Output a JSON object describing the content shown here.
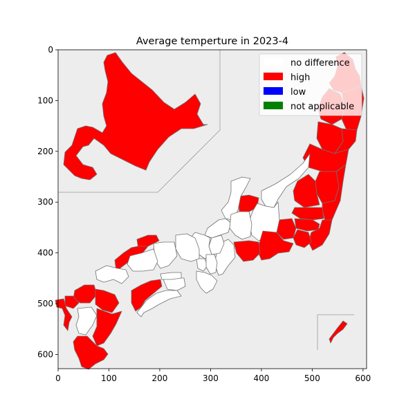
{
  "chart_data": {
    "type": "choropleth",
    "title": "Average temperture in 2023-4",
    "xlim": [
      0,
      607
    ],
    "ylim": [
      628,
      0
    ],
    "xticks": [
      0,
      100,
      200,
      300,
      400,
      500,
      600
    ],
    "yticks": [
      0,
      100,
      200,
      300,
      400,
      500,
      600
    ],
    "grid": false,
    "legend_placement": "top-right",
    "legend": [
      {
        "label": "no difference",
        "color": "#ffffff"
      },
      {
        "label": "high",
        "color": "#ff0000"
      },
      {
        "label": "low",
        "color": "#0000ff"
      },
      {
        "label": "not applicable",
        "color": "#008000"
      }
    ],
    "regions": [
      {
        "name": "Hokkaido",
        "category": "high"
      },
      {
        "name": "Aomori",
        "category": "high"
      },
      {
        "name": "Iwate",
        "category": "high"
      },
      {
        "name": "Miyagi",
        "category": "high"
      },
      {
        "name": "Akita",
        "category": "high"
      },
      {
        "name": "Yamagata",
        "category": "high"
      },
      {
        "name": "Fukushima",
        "category": "high"
      },
      {
        "name": "Ibaraki",
        "category": "high"
      },
      {
        "name": "Tochigi",
        "category": "high"
      },
      {
        "name": "Gunma",
        "category": "high"
      },
      {
        "name": "Saitama",
        "category": "high"
      },
      {
        "name": "Chiba",
        "category": "high"
      },
      {
        "name": "Tokyo",
        "category": "high"
      },
      {
        "name": "Kanagawa",
        "category": "high"
      },
      {
        "name": "Niigata",
        "category": "no difference"
      },
      {
        "name": "Toyama",
        "category": "high"
      },
      {
        "name": "Ishikawa",
        "category": "no difference"
      },
      {
        "name": "Fukui",
        "category": "no difference"
      },
      {
        "name": "Yamanashi",
        "category": "high"
      },
      {
        "name": "Nagano",
        "category": "no difference"
      },
      {
        "name": "Gifu",
        "category": "no difference"
      },
      {
        "name": "Shizuoka",
        "category": "high"
      },
      {
        "name": "Aichi",
        "category": "high"
      },
      {
        "name": "Mie",
        "category": "no difference"
      },
      {
        "name": "Shiga",
        "category": "no difference"
      },
      {
        "name": "Kyoto",
        "category": "no difference"
      },
      {
        "name": "Osaka",
        "category": "no difference"
      },
      {
        "name": "Hyogo",
        "category": "no difference"
      },
      {
        "name": "Nara",
        "category": "no difference"
      },
      {
        "name": "Wakayama",
        "category": "no difference"
      },
      {
        "name": "Tottori",
        "category": "high"
      },
      {
        "name": "Shimane",
        "category": "high"
      },
      {
        "name": "Okayama",
        "category": "no difference"
      },
      {
        "name": "Hiroshima",
        "category": "no difference"
      },
      {
        "name": "Yamaguchi",
        "category": "no difference"
      },
      {
        "name": "Tokushima",
        "category": "no difference"
      },
      {
        "name": "Kagawa",
        "category": "no difference"
      },
      {
        "name": "Ehime",
        "category": "high"
      },
      {
        "name": "Kochi",
        "category": "no difference"
      },
      {
        "name": "Fukuoka",
        "category": "high"
      },
      {
        "name": "Saga",
        "category": "high"
      },
      {
        "name": "Nagasaki",
        "category": "high"
      },
      {
        "name": "Kumamoto",
        "category": "no difference"
      },
      {
        "name": "Oita",
        "category": "high"
      },
      {
        "name": "Miyazaki",
        "category": "high"
      },
      {
        "name": "Kagoshima",
        "category": "high"
      },
      {
        "name": "Okinawa",
        "category": "high"
      }
    ]
  }
}
